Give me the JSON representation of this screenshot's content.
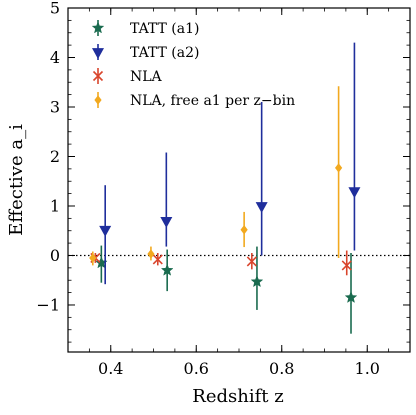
{
  "chart_data": {
    "type": "scatter",
    "title": "",
    "xlabel": "Redshift z",
    "ylabel": "Effective a_i",
    "xlim": [
      0.3,
      1.1
    ],
    "ylim": [
      -1.95,
      5.0
    ],
    "xticks": [
      0.4,
      0.6,
      0.8,
      1.0
    ],
    "xtick_labels": [
      "0.4",
      "0.6",
      "0.8",
      "1.0"
    ],
    "yticks": [
      -1,
      0,
      1,
      2,
      3,
      4,
      5
    ],
    "ytick_labels": [
      "−1",
      "0",
      "1",
      "2",
      "3",
      "4",
      "5"
    ],
    "grid": false,
    "reference_line": {
      "y": 0,
      "style": "dotted",
      "color": "#000000"
    },
    "legend_position": "upper-left",
    "series": [
      {
        "name": "TATT (a1)",
        "marker": "star",
        "color": "#1a6b4f",
        "points": [
          {
            "x": 0.378,
            "y": -0.15,
            "ylo": -0.55,
            "yhi": 0.2
          },
          {
            "x": 0.532,
            "y": -0.3,
            "ylo": -0.72,
            "yhi": 0.12
          },
          {
            "x": 0.742,
            "y": -0.53,
            "ylo": -1.1,
            "yhi": 0.18
          },
          {
            "x": 0.962,
            "y": -0.85,
            "ylo": -1.58,
            "yhi": 0.05
          }
        ]
      },
      {
        "name": "TATT (a2)",
        "marker": "triangle-down",
        "color": "#1f2e9c",
        "points": [
          {
            "x": 0.387,
            "y": 0.52,
            "ylo": -0.58,
            "yhi": 1.42
          },
          {
            "x": 0.53,
            "y": 0.7,
            "ylo": 0.18,
            "yhi": 2.08
          },
          {
            "x": 0.753,
            "y": 1.0,
            "ylo": 0.0,
            "yhi": 3.1
          },
          {
            "x": 0.97,
            "y": 1.3,
            "ylo": 0.1,
            "yhi": 4.3
          }
        ]
      },
      {
        "name": "NLA",
        "marker": "x",
        "color": "#d9452c",
        "points": [
          {
            "x": 0.364,
            "y": -0.05,
            "ylo": -0.15,
            "yhi": 0.05
          },
          {
            "x": 0.51,
            "y": -0.08,
            "ylo": -0.2,
            "yhi": 0.05
          },
          {
            "x": 0.73,
            "y": -0.12,
            "ylo": -0.28,
            "yhi": 0.05
          },
          {
            "x": 0.952,
            "y": -0.2,
            "ylo": -0.4,
            "yhi": 0.1
          }
        ]
      },
      {
        "name": "NLA, free a1 per z−bin",
        "marker": "diamond",
        "color": "#f2a91f",
        "points": [
          {
            "x": 0.358,
            "y": -0.05,
            "ylo": -0.2,
            "yhi": 0.08
          },
          {
            "x": 0.494,
            "y": 0.03,
            "ylo": -0.1,
            "yhi": 0.18
          },
          {
            "x": 0.712,
            "y": 0.52,
            "ylo": 0.17,
            "yhi": 0.88
          },
          {
            "x": 0.933,
            "y": 1.77,
            "ylo": -0.05,
            "yhi": 3.42
          }
        ]
      }
    ]
  }
}
